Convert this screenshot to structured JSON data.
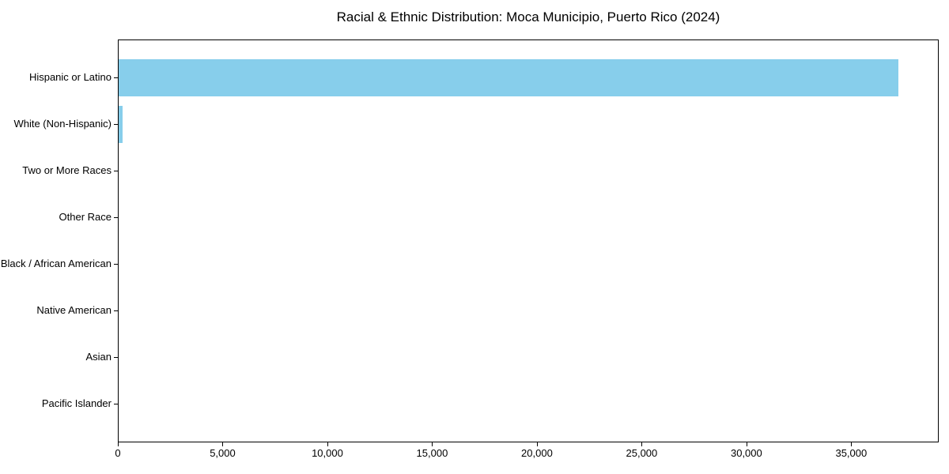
{
  "title": "Racial & Ethnic Distribution: Moca Municipio, Puerto Rico (2024)",
  "chart_data": {
    "type": "bar",
    "orientation": "horizontal",
    "title": "Racial & Ethnic Distribution: Moca Municipio, Puerto Rico (2024)",
    "xlabel": "",
    "ylabel": "",
    "categories": [
      "Hispanic or Latino",
      "White (Non-Hispanic)",
      "Two or More Races",
      "Other Race",
      "Black / African American",
      "Native American",
      "Asian",
      "Pacific Islander"
    ],
    "values": [
      37230,
      190,
      0,
      0,
      0,
      0,
      0,
      0
    ],
    "xlim": [
      0,
      39100
    ],
    "xticks": [
      0,
      5000,
      10000,
      15000,
      20000,
      25000,
      30000,
      35000
    ],
    "bar_color": "#87CEEB",
    "grid": false,
    "legend": false
  }
}
